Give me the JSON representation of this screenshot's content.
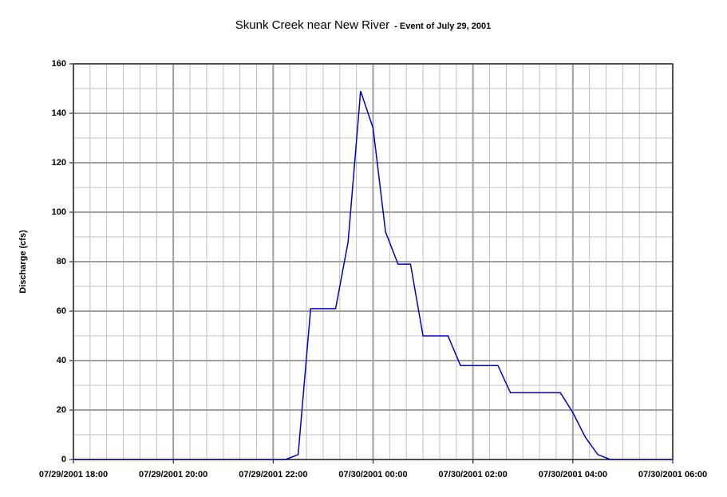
{
  "chart_data": {
    "type": "line",
    "title": "Skunk Creek near New River",
    "subtitle": "- Event of July 29, 2001",
    "y_label": "Discharge (cfs)",
    "x": [
      "07/29/2001 18:00",
      "07/29/2001 22:15",
      "07/29/2001 22:30",
      "07/29/2001 22:45",
      "07/29/2001 23:15",
      "07/29/2001 23:30",
      "07/29/2001 23:45",
      "07/30/2001 00:00",
      "07/30/2001 00:15",
      "07/30/2001 00:30",
      "07/30/2001 00:45",
      "07/30/2001 01:00",
      "07/30/2001 01:30",
      "07/30/2001 01:45",
      "07/30/2001 02:30",
      "07/30/2001 02:45",
      "07/30/2001 03:45",
      "07/30/2001 04:00",
      "07/30/2001 04:15",
      "07/30/2001 04:30",
      "07/30/2001 04:45",
      "07/30/2001 06:00"
    ],
    "series": [
      {
        "name": "Discharge",
        "color": "#0000cc",
        "values": [
          0,
          0,
          2,
          61,
          61,
          88,
          149,
          134,
          92,
          79,
          79,
          50,
          50,
          38,
          38,
          27,
          27,
          19,
          9,
          2,
          0,
          0
        ]
      }
    ],
    "xlim": [
      "07/29/2001 18:00",
      "07/30/2001 06:00"
    ],
    "xticks": [
      "07/29/2001 18:00",
      "07/29/2001 20:00",
      "07/29/2001 22:00",
      "07/30/2001 00:00",
      "07/30/2001 02:00",
      "07/30/2001 04:00",
      "07/30/2001 06:00"
    ],
    "ylim": [
      0,
      160
    ],
    "yticks": [
      0,
      20,
      40,
      60,
      80,
      100,
      120,
      140,
      160
    ],
    "grid": true
  }
}
